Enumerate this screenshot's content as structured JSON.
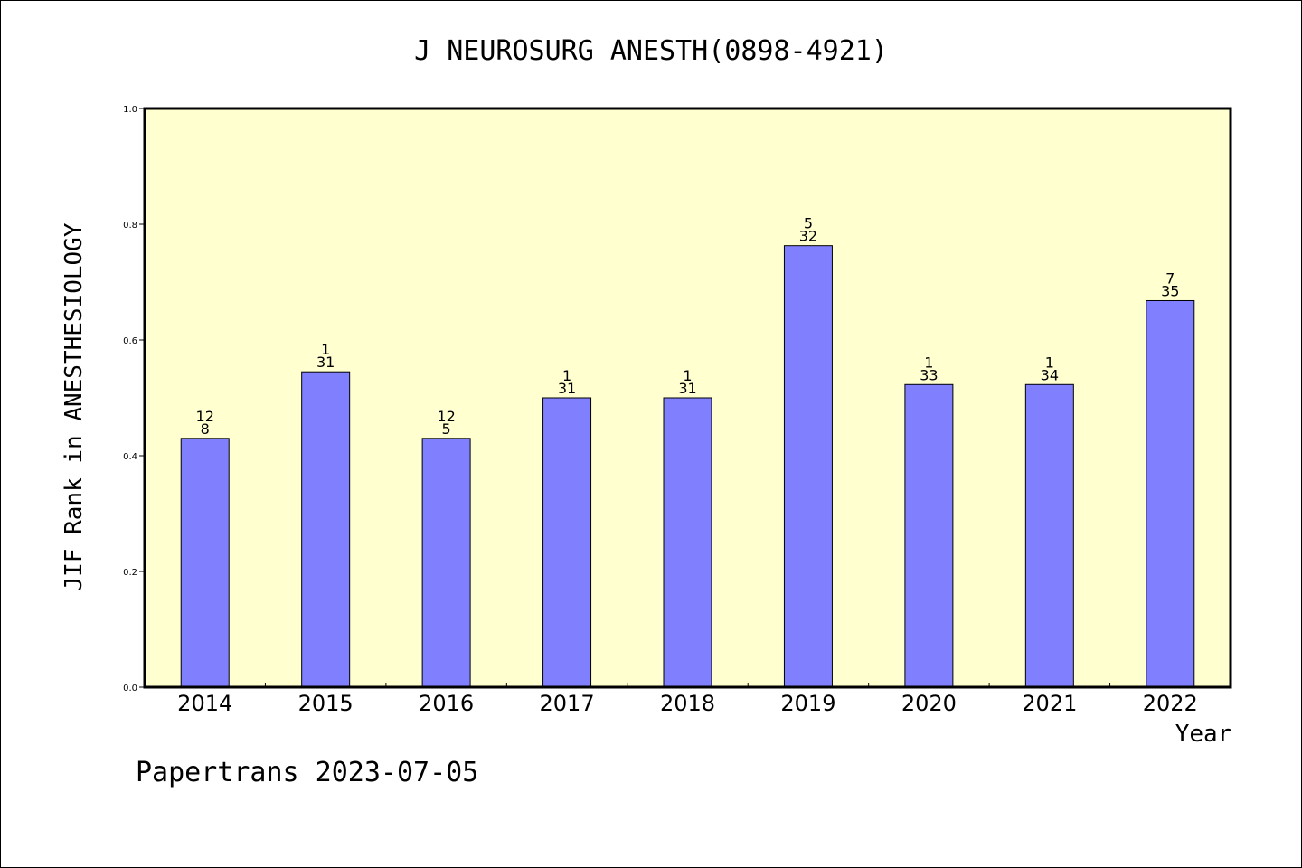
{
  "chart_data": {
    "type": "bar",
    "title": "J NEUROSURG ANESTH(0898-4921)",
    "xlabel": "Year",
    "ylabel": "JIF Rank in ANESTHESIOLOGY",
    "ylim": [
      0,
      1.0
    ],
    "y_ticks": [
      "0.0",
      "0.2",
      "0.4",
      "0.6",
      "0.8",
      "1.0"
    ],
    "categories": [
      "2014",
      "2015",
      "2016",
      "2017",
      "2018",
      "2019",
      "2020",
      "2021",
      "2022"
    ],
    "values": [
      0.43,
      0.545,
      0.43,
      0.5,
      0.5,
      0.763,
      0.523,
      0.523,
      0.668
    ],
    "labels_top": [
      "12",
      "1",
      "12",
      "1",
      "1",
      "5",
      "1",
      "1",
      "7"
    ],
    "labels_bottom": [
      "8",
      "31",
      "5",
      "31",
      "31",
      "32",
      "33",
      "34",
      "35"
    ],
    "grid": false,
    "colors": {
      "plot_background": "#ffffd0",
      "bar_fill": "#8080ff",
      "bar_stroke": "#000000"
    }
  },
  "footer": {
    "text": "Papertrans 2023-07-05"
  }
}
